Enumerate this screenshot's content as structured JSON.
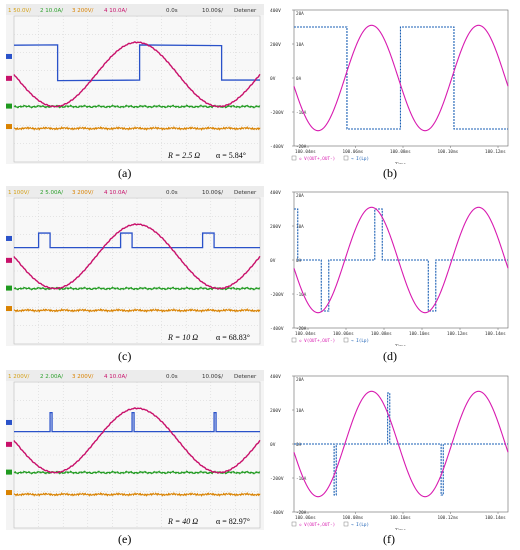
{
  "scope": {
    "header": [
      {
        "idx": "1",
        "label": "",
        "color": "#d4a017"
      },
      {
        "idx": "2",
        "label": "",
        "color": "#2ca02c"
      },
      {
        "idx": "3",
        "label": "",
        "color": "#d4a017"
      },
      {
        "idx": "4",
        "label": "",
        "color": "#d4a017"
      },
      {
        "label": "0.0s",
        "color": "#333333"
      },
      {
        "label": "10.00$/",
        "color": "#333333"
      },
      {
        "label": "Detener",
        "color": "#333333"
      }
    ]
  },
  "colors": {
    "voltage": "#c8106a",
    "current": "#2a52c9",
    "ch2": "#1f9a1f",
    "ch3": "#d98200",
    "sim_voltage": "#d81bb0",
    "sim_current": "#1a5fb4"
  },
  "chart_data": [
    {
      "id": "a",
      "type": "line",
      "caption": "(a)",
      "header": [
        "50.0V/",
        "10.0A/",
        "200V/",
        "10.0A/",
        "0.0s",
        "10.00$/",
        "Detener"
      ],
      "annotation": {
        "R": "R = 2.5 Ω",
        "alpha": "α = 5.84°"
      },
      "series": [
        {
          "name": "voltage",
          "channel": 1
        },
        {
          "name": "current",
          "channel": 4,
          "shape": "square",
          "alpha_deg": 5.84
        },
        {
          "name": "channel 2",
          "channel": 2
        },
        {
          "name": "channel 3",
          "channel": 3
        }
      ]
    },
    {
      "id": "b",
      "type": "line",
      "caption": "(b)",
      "y_left_ticks": [
        "400V",
        "200V",
        "0V",
        "-200V",
        "-400V"
      ],
      "y_right_ticks": [
        "20A",
        "10A",
        "0A",
        "-10A",
        "-20A"
      ],
      "x_ticks": [
        "100.04ms",
        "100.06ms",
        "100.08ms",
        "100.10ms",
        "100.12ms"
      ],
      "x_label": "Time",
      "legend": [
        "V(OUT+,OUT-)",
        "I(Lp)"
      ],
      "series": [
        {
          "name": "V(OUT+,OUT-)",
          "amplitude_V": 310
        },
        {
          "name": "I(Lp)",
          "levels_A": [
            15,
            -15
          ]
        }
      ]
    },
    {
      "id": "c",
      "type": "line",
      "caption": "(c)",
      "header": [
        "100V/",
        "5.00A/",
        "200V/",
        "10.0A/",
        "0.0s",
        "10.00$/",
        "Detener"
      ],
      "annotation": {
        "R": "R = 10 Ω",
        "alpha": "α = 68.83°"
      },
      "series": [
        {
          "name": "voltage",
          "channel": 1
        },
        {
          "name": "current",
          "channel": 4,
          "shape": "pulse",
          "alpha_deg": 68.83
        },
        {
          "name": "channel 2",
          "channel": 2
        },
        {
          "name": "channel 3",
          "channel": 3
        }
      ]
    },
    {
      "id": "d",
      "type": "line",
      "caption": "(d)",
      "y_left_ticks": [
        "400V",
        "200V",
        "0V",
        "-200V",
        "-400V"
      ],
      "y_right_ticks": [
        "20A",
        "10A",
        "0A",
        "-10A",
        "-20A"
      ],
      "x_ticks": [
        "100.04ms",
        "100.06ms",
        "100.08ms",
        "100.10ms",
        "100.12ms",
        "100.14ms"
      ],
      "x_label": "Time",
      "legend": [
        "V(OUT+,OUT-)",
        "I(Lp)"
      ],
      "series": [
        {
          "name": "V(OUT+,OUT-)",
          "amplitude_V": 310
        },
        {
          "name": "I(Lp)",
          "levels_A": [
            15,
            0,
            -15
          ]
        }
      ]
    },
    {
      "id": "e",
      "type": "line",
      "caption": "(e)",
      "header": [
        "200V/",
        "2.00A/",
        "200V/",
        "10.0A/",
        "0.0s",
        "10.00$/",
        "Detener"
      ],
      "annotation": {
        "R": "R = 40 Ω",
        "alpha": "α = 82.97°"
      },
      "series": [
        {
          "name": "voltage",
          "channel": 1
        },
        {
          "name": "current",
          "channel": 4,
          "shape": "spike",
          "alpha_deg": 82.97
        },
        {
          "name": "channel 2",
          "channel": 2
        },
        {
          "name": "channel 3",
          "channel": 3
        }
      ]
    },
    {
      "id": "f",
      "type": "line",
      "caption": "(f)",
      "y_left_ticks": [
        "400V",
        "200V",
        "0V",
        "-200V",
        "-400V"
      ],
      "y_right_ticks": [
        "20A",
        "10A",
        "0A",
        "-10A",
        "-20A"
      ],
      "x_ticks": [
        "100.06ms",
        "100.08ms",
        "100.10ms",
        "100.12ms",
        "100.14ms"
      ],
      "x_label": "Time",
      "legend": [
        "V(OUT+,OUT-)",
        "I(Lp)"
      ],
      "series": [
        {
          "name": "V(OUT+,OUT-)",
          "amplitude_V": 310
        },
        {
          "name": "I(Lp)",
          "levels_A": [
            15,
            0,
            -15
          ]
        }
      ]
    }
  ]
}
